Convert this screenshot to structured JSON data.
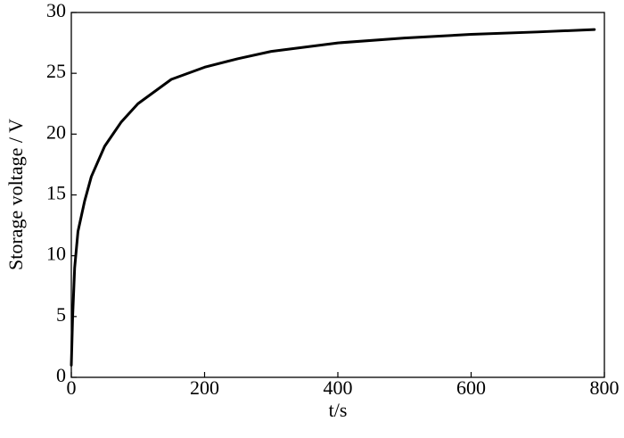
{
  "chart_data": {
    "type": "line",
    "x_label": "t/s",
    "y_label": "Storage voltage / V",
    "x": [
      0,
      2,
      5,
      10,
      20,
      30,
      50,
      75,
      100,
      150,
      200,
      250,
      300,
      400,
      500,
      600,
      700,
      785
    ],
    "series": [
      {
        "color": "#000000",
        "values": [
          1,
          5,
          9,
          12,
          14.5,
          16.5,
          19,
          21,
          22.5,
          24.5,
          25.5,
          26.2,
          26.8,
          27.5,
          27.9,
          28.2,
          28.4,
          28.6
        ]
      }
    ],
    "xlim": [
      0,
      800
    ],
    "xticks": [
      0,
      200,
      400,
      600,
      800
    ],
    "ylim": [
      0,
      30
    ],
    "yticks": [
      0,
      5,
      10,
      15,
      20,
      25,
      30
    ]
  }
}
